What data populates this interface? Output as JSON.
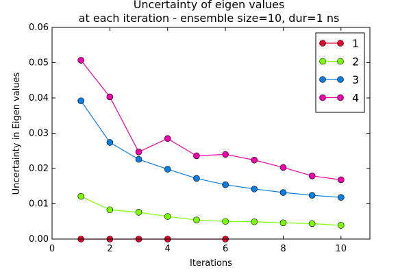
{
  "chart_data": {
    "type": "line",
    "title": "Uncertainty of eigen values",
    "subtitle": "at each iteration - ensemble size=10, dur=1 ns",
    "xlabel": "Iterations",
    "ylabel": "Uncertainty in Eigen values",
    "xlim": [
      0,
      11
    ],
    "ylim": [
      0,
      0.06
    ],
    "xticks": [
      0,
      2,
      4,
      6,
      8,
      10
    ],
    "xtick_labels": [
      "0",
      "2",
      "4",
      "6",
      "8",
      "10"
    ],
    "yticks": [
      0,
      0.01,
      0.02,
      0.03,
      0.04,
      0.05,
      0.06
    ],
    "ytick_labels": [
      "0.00",
      "0.01",
      "0.02",
      "0.03",
      "0.04",
      "0.05",
      "0.06"
    ],
    "grid": false,
    "legend_position": "top-right",
    "series": [
      {
        "name": "1",
        "color": "#e8002a",
        "points": [
          [
            1,
            0.0
          ],
          [
            2,
            0.0
          ],
          [
            3,
            0.0
          ],
          [
            4,
            0.0
          ],
          [
            6,
            0.0
          ]
        ]
      },
      {
        "name": "2",
        "color": "#7bff00",
        "points": [
          [
            1,
            0.0121
          ],
          [
            2,
            0.0083
          ],
          [
            3,
            0.0076
          ],
          [
            4,
            0.0064
          ],
          [
            5,
            0.0054
          ],
          [
            6,
            0.005
          ],
          [
            7,
            0.0049
          ],
          [
            8,
            0.0046
          ],
          [
            9,
            0.0044
          ],
          [
            10,
            0.0039
          ]
        ]
      },
      {
        "name": "3",
        "color": "#0a7de0",
        "points": [
          [
            1,
            0.0392
          ],
          [
            2,
            0.0274
          ],
          [
            3,
            0.0226
          ],
          [
            4,
            0.0198
          ],
          [
            5,
            0.0172
          ],
          [
            6,
            0.0154
          ],
          [
            7,
            0.0142
          ],
          [
            8,
            0.0132
          ],
          [
            9,
            0.0124
          ],
          [
            10,
            0.0118
          ]
        ]
      },
      {
        "name": "4",
        "color": "#ee00aa",
        "points": [
          [
            1,
            0.0507
          ],
          [
            2,
            0.0403
          ],
          [
            3,
            0.0247
          ],
          [
            4,
            0.0285
          ],
          [
            5,
            0.0236
          ],
          [
            6,
            0.024
          ],
          [
            7,
            0.0224
          ],
          [
            8,
            0.0203
          ],
          [
            9,
            0.0179
          ],
          [
            10,
            0.0168
          ]
        ]
      }
    ]
  }
}
